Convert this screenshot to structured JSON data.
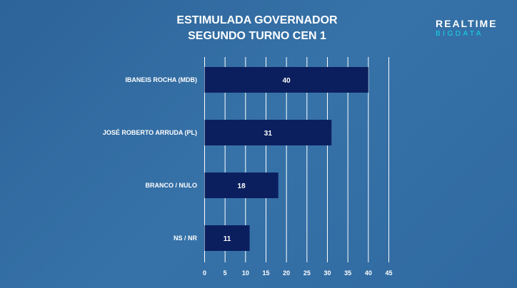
{
  "chart_data": {
    "type": "bar",
    "orientation": "horizontal",
    "title": [
      "ESTIMULADA GOVERNADOR",
      "SEGUNDO TURNO  CEN 1"
    ],
    "categories": [
      "IBANEIS ROCHA (MDB)",
      "JOSÉ ROBERTO ARRUDA (PL)",
      "BRANCO / NULO",
      "NS / NR"
    ],
    "values": [
      40,
      31,
      18,
      11
    ],
    "xlim": [
      0,
      45
    ],
    "xticks": [
      0,
      5,
      10,
      15,
      20,
      25,
      30,
      35,
      40,
      45
    ],
    "grid": true,
    "bar_color": "#0b1f5e"
  },
  "logo": {
    "line1": "REALTIME",
    "line2": "BIGDATA"
  }
}
